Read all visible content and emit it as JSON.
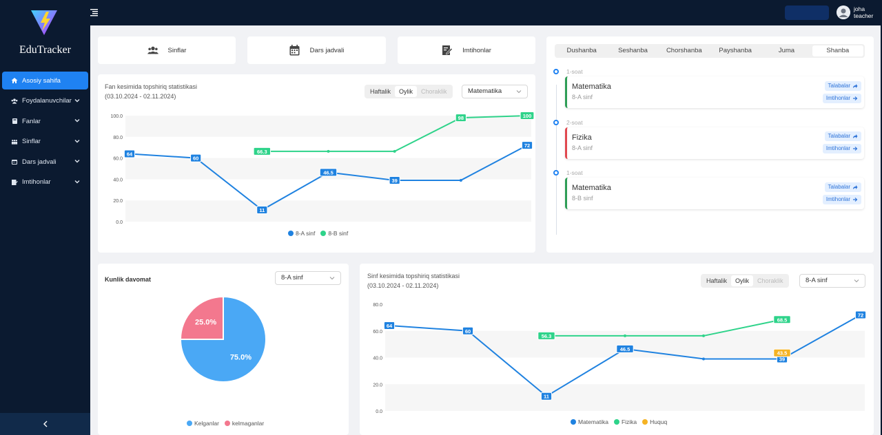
{
  "app": {
    "brand": "EduTracker"
  },
  "sidebar": {
    "items": [
      {
        "label": "Asosiy sahifa",
        "icon": "home-icon",
        "active": true,
        "chevron": false
      },
      {
        "label": "Foydalanuvchilar",
        "icon": "users-icon",
        "chevron": true
      },
      {
        "label": "Fanlar",
        "icon": "book-icon",
        "chevron": true
      },
      {
        "label": "Sinflar",
        "icon": "group-icon",
        "chevron": true
      },
      {
        "label": "Dars jadvali",
        "icon": "calendar-icon",
        "chevron": true
      },
      {
        "label": "Imtihonlar",
        "icon": "exam-icon",
        "chevron": true
      }
    ],
    "collapse_icon": "chevron-left-icon"
  },
  "topbar": {
    "user_name": "joha",
    "user_role": "teacher"
  },
  "quick_links": [
    {
      "label": "Sinflar",
      "icon": "users-icon"
    },
    {
      "label": "Dars jadvali",
      "icon": "calendar-icon"
    },
    {
      "label": "Imtihonlar",
      "icon": "exam-icon"
    }
  ],
  "subject_chart": {
    "title": "Fan kesimida topshiriq statistikasi",
    "date_range": "(03.10.2024 - 02.11.2024)",
    "periods": [
      "Haftalik",
      "Oylik",
      "Choraklik"
    ],
    "active_period": "Oylik",
    "select_value": "Matematika"
  },
  "schedule": {
    "days": [
      "Dushanba",
      "Seshanba",
      "Chorshanba",
      "Payshanba",
      "Juma",
      "Shanba"
    ],
    "active_day": "Shanba",
    "lessons": [
      {
        "slot": "1-soat",
        "subject": "Matematika",
        "class": "8-A sinf",
        "color": "#2e9d56",
        "btn1": "Talabalar",
        "btn2": "Imtihonlar"
      },
      {
        "slot": "2-soat",
        "subject": "Fizika",
        "class": "8-A sinf",
        "color": "#e0484f",
        "btn1": "Talabalar",
        "btn2": "Imtihonlar"
      },
      {
        "slot": "1-soat",
        "subject": "Matematika",
        "class": "8-B sinf",
        "color": "#2e9d56",
        "btn1": "Talabalar",
        "btn2": "Imtihonlar"
      }
    ]
  },
  "attendance": {
    "title": "Kunlik davomat",
    "select_value": "8-A sinf"
  },
  "class_chart": {
    "title": "Sinf kesimida topshiriq statistikasi",
    "date_range": "(03.10.2024 - 02.11.2024)",
    "periods": [
      "Haftalik",
      "Oylik",
      "Choraklik"
    ],
    "active_period": "Oylik",
    "select_value": "8-A sinf"
  },
  "chart_data": [
    {
      "type": "line",
      "x": [
        1,
        2,
        3,
        4,
        5,
        6,
        7
      ],
      "ylim": [
        0,
        100
      ],
      "yticks": [
        "0.0",
        "20.0",
        "40.0",
        "60.0",
        "80.0",
        "100.0"
      ],
      "series": [
        {
          "name": "8-A sinf",
          "color": "#1f82e0",
          "values": [
            64,
            60,
            11,
            46.5,
            39,
            39,
            72
          ],
          "labels": [
            "64",
            "60",
            "11",
            "46.5",
            "39",
            null,
            "72"
          ]
        },
        {
          "name": "8-B sinf",
          "color": "#2ed38a",
          "values": [
            null,
            null,
            66.3,
            66.3,
            66.3,
            98,
            100
          ],
          "labels": [
            null,
            null,
            "66.3",
            null,
            null,
            "98",
            "100"
          ]
        }
      ]
    },
    {
      "type": "pie",
      "slices": [
        {
          "name": "Kelganlar",
          "value": 75.0,
          "label": "75.0%",
          "color": "#4aa8f5"
        },
        {
          "name": "kelmaganlar",
          "value": 25.0,
          "label": "25.0%",
          "color": "#f3788e"
        }
      ]
    },
    {
      "type": "line",
      "x": [
        1,
        2,
        3,
        4,
        5,
        6,
        7
      ],
      "ylim": [
        0,
        80
      ],
      "yticks": [
        "0.0",
        "20.0",
        "40.0",
        "60.0",
        "80.0"
      ],
      "series": [
        {
          "name": "Matematika",
          "color": "#1f82e0",
          "values": [
            64,
            60,
            11,
            46.5,
            39,
            39,
            72
          ],
          "labels": [
            "64",
            "60",
            "11",
            "46.5",
            null,
            "39",
            "72"
          ]
        },
        {
          "name": "Fizika",
          "color": "#2ed38a",
          "values": [
            null,
            null,
            56.3,
            56.3,
            56.3,
            68.5,
            null
          ],
          "labels": [
            null,
            null,
            "56.3",
            null,
            null,
            "68.5",
            null
          ]
        },
        {
          "name": "Huquq",
          "color": "#f5b324",
          "values": [
            null,
            null,
            null,
            null,
            null,
            43.5,
            null
          ],
          "labels": [
            null,
            null,
            null,
            null,
            null,
            "43.5",
            null
          ]
        }
      ]
    }
  ]
}
